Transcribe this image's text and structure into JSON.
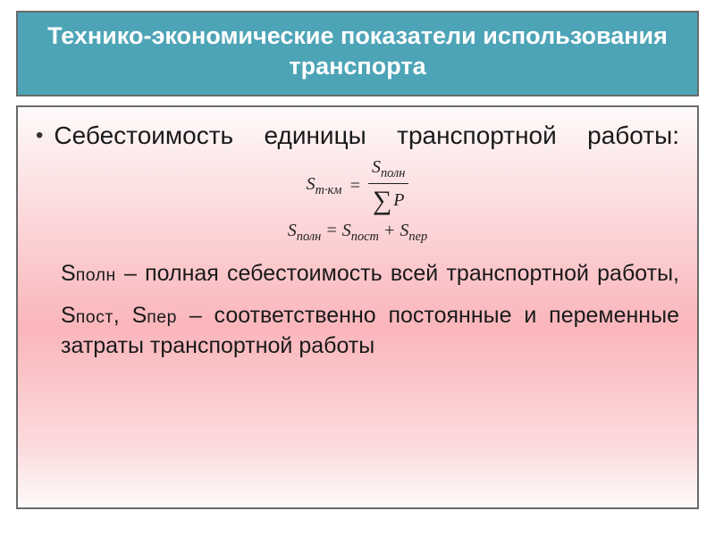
{
  "title": "Технико-экономические показатели использования транспорта",
  "lead": "Себестоимость единицы транспортной работы:",
  "formula1": {
    "left_sym": "S",
    "left_sub": "т·км",
    "eq": "=",
    "num_sym": "S",
    "num_sub": "полн",
    "den_sigma": "∑",
    "den_P": "P"
  },
  "formula2": {
    "left_sym": "S",
    "left_sub": "полн",
    "eq": "=",
    "a_sym": "S",
    "a_sub": "пост",
    "plus": "+",
    "b_sym": "S",
    "b_sub": "пер"
  },
  "def1": {
    "sym_big": "S",
    "sym_small": "полн",
    "text_rest": " – полная себестоимость всей транспортной работы,"
  },
  "def2": {
    "sym1_big": "S",
    "sym1_small": "пост",
    "comma": ", ",
    "sym2_big": "S",
    "sym2_small": "пер",
    "text_rest": " – соответственно постоянные и переменные затраты транспортной работы"
  },
  "colors": {
    "title_bg": "#4da4b7",
    "border": "#6a6a6a",
    "title_text": "#ffffff",
    "body_text": "#1a1a1a"
  }
}
